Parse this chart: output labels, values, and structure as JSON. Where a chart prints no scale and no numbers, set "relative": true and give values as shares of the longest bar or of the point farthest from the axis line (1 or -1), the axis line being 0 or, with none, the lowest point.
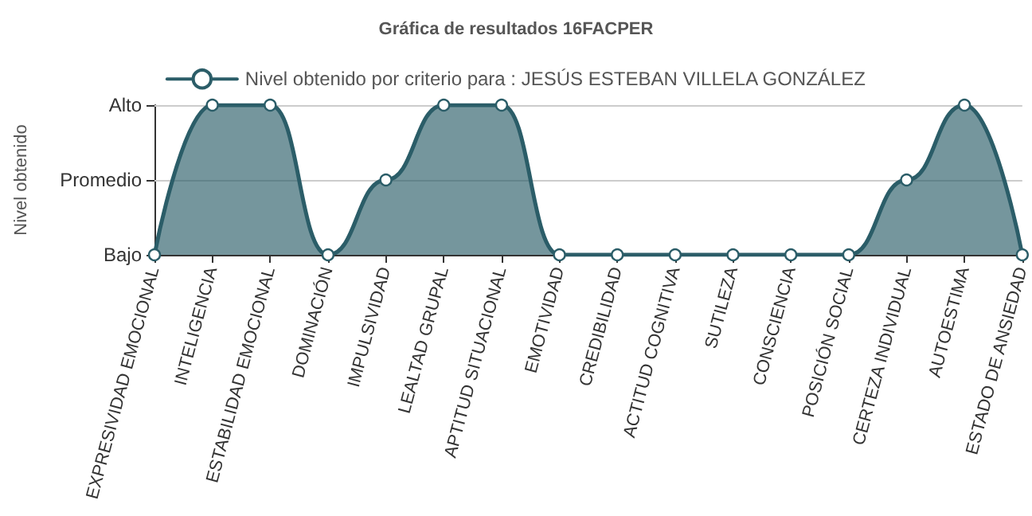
{
  "chart_data": {
    "type": "area",
    "title": "Gráfica de resultados 16FACPER",
    "ylabel": "Nivel obtenido",
    "relative": true,
    "categories": [
      "EXPRESIVIDAD EMOCIONAL",
      "INTELIGENCIA",
      "ESTABILIDAD EMOCIONAL",
      "DOMINACIÓN",
      "IMPULSIVIDAD",
      "LEALTAD GRUPAL",
      "APTITUD SITUACIONAL",
      "EMOTIVIDAD",
      "CREDIBILIDAD",
      "ACTITUD COGNITIVA",
      "SUTILEZA",
      "CONSCIENCIA",
      "POSICIÓN SOCIAL",
      "CERTEZA INDIVIDUAL",
      "AUTOESTIMA",
      "ESTADO DE ANSIEDAD"
    ],
    "series": [
      {
        "name": "Nivel obtenido por criterio para : JESÚS ESTEBAN VILLELA GONZÁLEZ",
        "color": "#2b5d68",
        "values": [
          0,
          1,
          1,
          0,
          0.5,
          1,
          1,
          0,
          0,
          0,
          0,
          0,
          0,
          0.5,
          1,
          0
        ]
      }
    ],
    "annotations": [
      "Bajo",
      "Promedio",
      "Alto"
    ],
    "ref_lines": [
      {
        "axis": "y",
        "value": 0.5,
        "color": "#cccccc"
      },
      {
        "axis": "y",
        "value": 1,
        "color": "#cccccc"
      }
    ],
    "legend": "top",
    "marker": "circle",
    "line_style": "solid"
  }
}
